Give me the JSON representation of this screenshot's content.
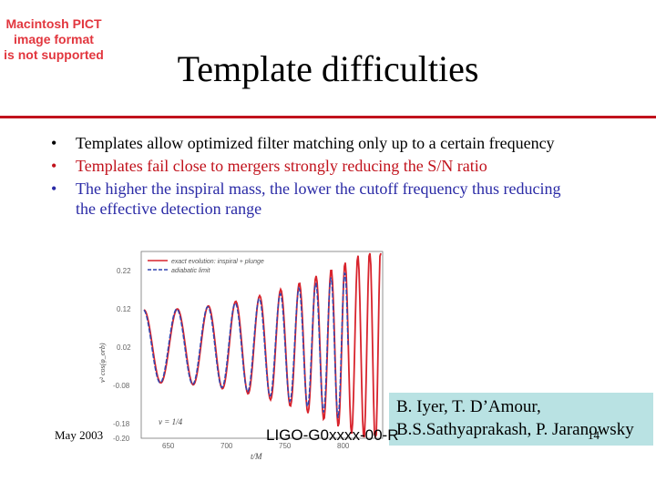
{
  "pict_notice": [
    "Macintosh PICT",
    "image format",
    "is not supported"
  ],
  "slide": {
    "title": "Template difficulties",
    "bullet_char": "•",
    "bullets": [
      {
        "text": "Templates allow optimized filter matching only up to a certain frequency",
        "color": "#000000"
      },
      {
        "text": "Templates fail close to mergers strongly reducing the S/N ratio",
        "color": "#c1121c"
      },
      {
        "text": "The higher the inspiral mass, the lower the cutoff frequency thus reducing the effective detection range",
        "color": "#2a2aa6"
      }
    ]
  },
  "figure": {
    "legend": [
      "exact evolution: inspiral + plunge",
      "adiabatic limit"
    ],
    "nu_label": "ν = 1/4",
    "y_ticks": [
      "0.22",
      "0.12",
      "0.02",
      "-0.08",
      "-0.18",
      "-0.20"
    ],
    "x_ticks": [
      "650",
      "700",
      "750",
      "800"
    ],
    "x_label": "t/M",
    "y_label": "v² cos(φ_orb)",
    "colors": {
      "exact": "#d8242d",
      "adiabatic": "#3045b0"
    }
  },
  "citation": [
    "B. Iyer, T. D’Amour,",
    "B.S.Sathyaprakash, P. Jaranowsky"
  ],
  "footer": {
    "date": "May 2003",
    "doc_id": "LIGO-G0xxxx-00-R",
    "page": "14"
  }
}
